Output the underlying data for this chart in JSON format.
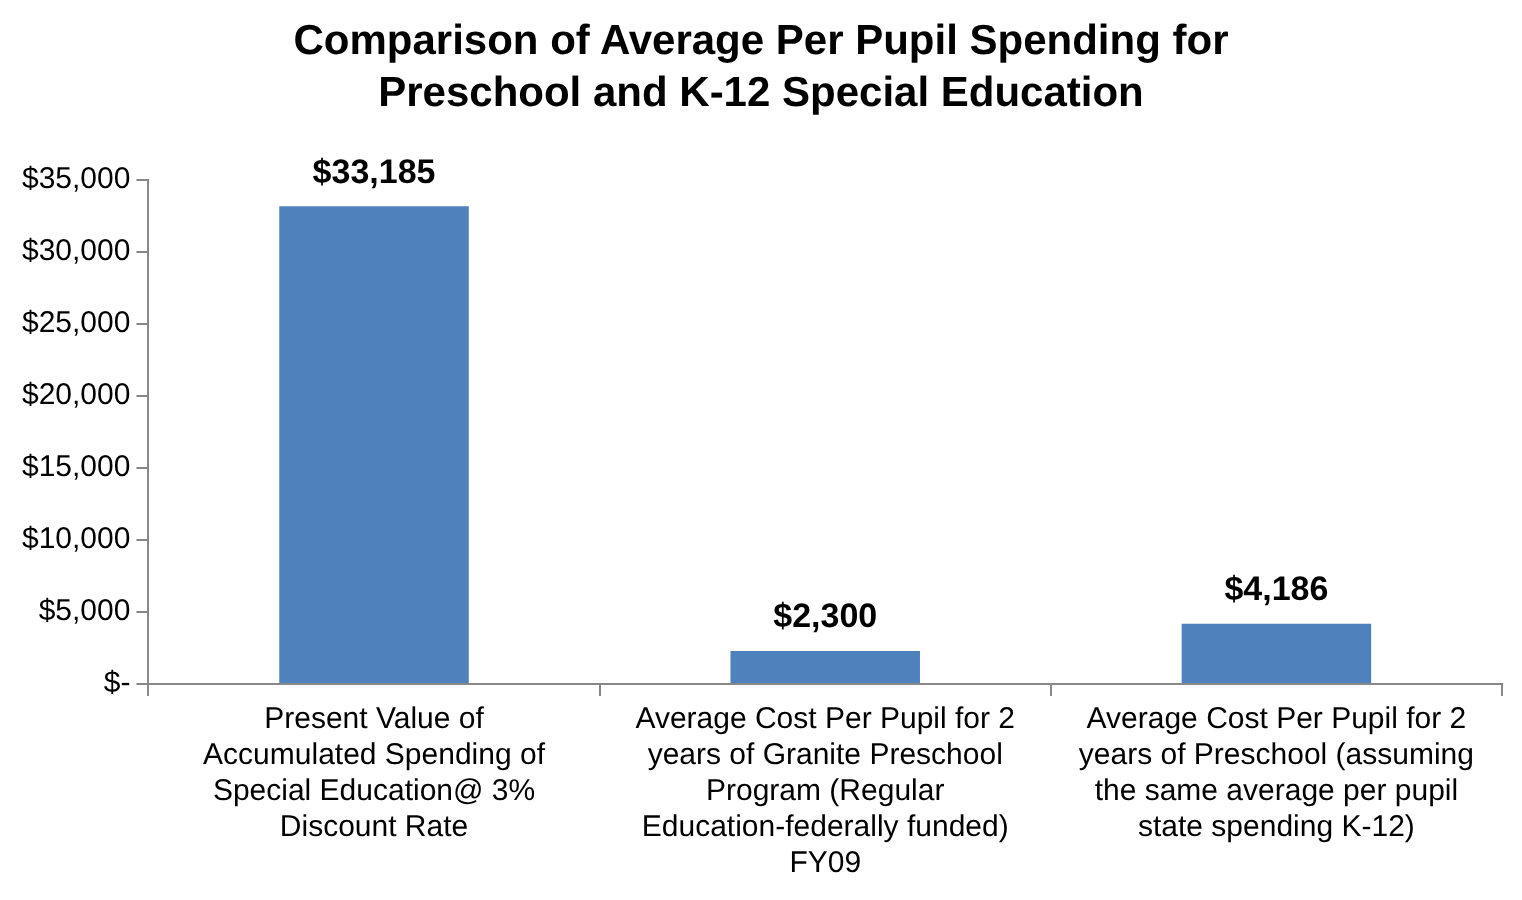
{
  "chart_data": {
    "type": "bar",
    "title": "Comparison of Average Per Pupil Spending for Preschool and K-12 Special Education",
    "categories": [
      "Present Value of Accumulated Spending of Special Education@ 3% Discount Rate",
      "Average Cost Per Pupil for 2 years of Granite Preschool Program (Regular Education-federally funded) FY09",
      "Average Cost Per Pupil for 2 years of Preschool (assuming the same average per pupil state spending K-12)"
    ],
    "values": [
      33185,
      2300,
      4186
    ],
    "value_labels": [
      "$33,185",
      "$2,300",
      "$4,186"
    ],
    "color": "#4f81bd",
    "ylim": [
      0,
      35000
    ],
    "yticks": [
      {
        "value": 0,
        "label": "$-"
      },
      {
        "value": 5000,
        "label": "$5,000"
      },
      {
        "value": 10000,
        "label": "$10,000"
      },
      {
        "value": 15000,
        "label": "$15,000"
      },
      {
        "value": 20000,
        "label": "$20,000"
      },
      {
        "value": 25000,
        "label": "$25,000"
      },
      {
        "value": 30000,
        "label": "$30,000"
      },
      {
        "value": 35000,
        "label": "$35,000"
      }
    ],
    "grid": false,
    "legend": false
  }
}
